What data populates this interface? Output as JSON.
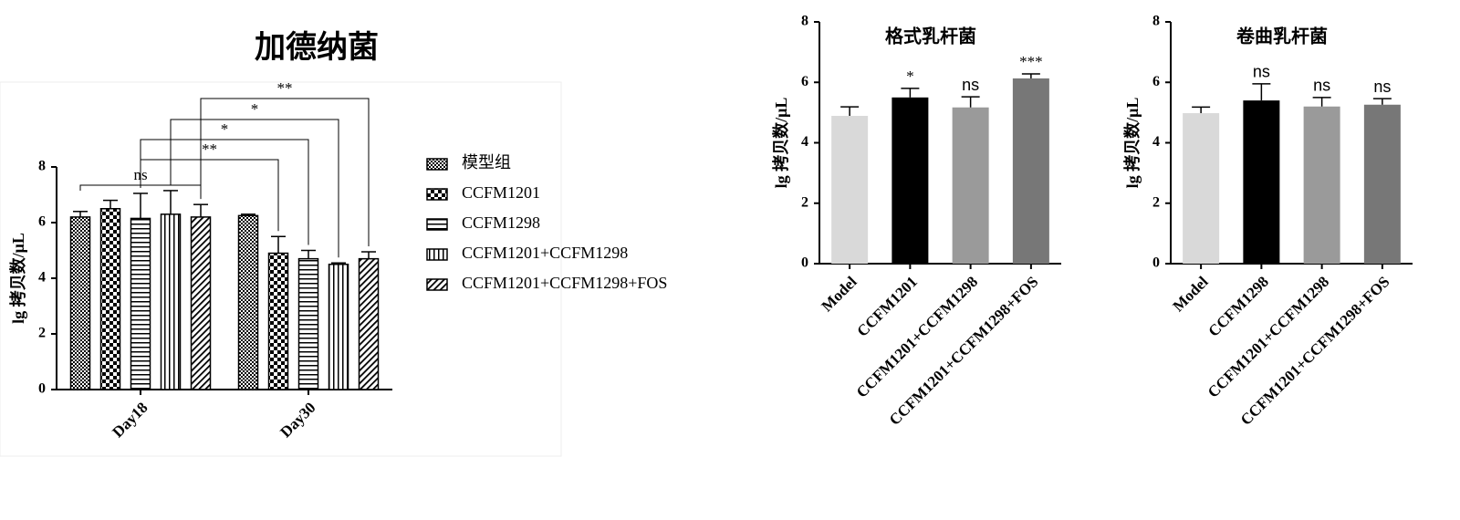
{
  "chart_data": [
    {
      "type": "grouped_bar",
      "title": "加德纳菌",
      "ylabel": "lg 拷贝数/μL",
      "categories": [
        "Day18",
        "Day30"
      ],
      "series": [
        {
          "name": "模型组",
          "pattern": "dots",
          "values": [
            6.2,
            6.25
          ],
          "errors": [
            0.2,
            0.05
          ]
        },
        {
          "name": "CCFM1201",
          "pattern": "checker",
          "values": [
            6.5,
            4.9
          ],
          "errors": [
            0.3,
            0.6
          ]
        },
        {
          "name": "CCFM1298",
          "pattern": "horizontal",
          "values": [
            6.15,
            4.7
          ],
          "errors": [
            0.9,
            0.3
          ]
        },
        {
          "name": "CCFM1201+CCFM1298",
          "pattern": "vertical",
          "values": [
            6.3,
            4.5
          ],
          "errors": [
            0.85,
            0.05
          ]
        },
        {
          "name": "CCFM1201+CCFM1298+FOS",
          "pattern": "diagonal",
          "values": [
            6.2,
            4.7
          ],
          "errors": [
            0.45,
            0.25
          ]
        }
      ],
      "significance": [
        "ns",
        "**",
        "*",
        "*",
        "**"
      ],
      "ylim": [
        0,
        8
      ],
      "yticks": [
        0,
        2,
        4,
        6,
        8
      ]
    },
    {
      "type": "bar",
      "title": "格式乳杆菌",
      "ylabel": "lg 拷贝数/μL",
      "categories": [
        "Model",
        "CCFM1201",
        "CCFM1201+CCFM1298",
        "CCFM1201+CCFM1298+FOS"
      ],
      "values": [
        4.89,
        5.5,
        5.17,
        6.13
      ],
      "errors": [
        0.3,
        0.3,
        0.35,
        0.15
      ],
      "colors": [
        "#d9d9d9",
        "#000000",
        "#9a9a9a",
        "#777777"
      ],
      "significance": [
        null,
        "*",
        "ns",
        "***"
      ],
      "ylim": [
        0,
        8
      ],
      "yticks": [
        0,
        2,
        4,
        6,
        8
      ]
    },
    {
      "type": "bar",
      "title": "卷曲乳杆菌",
      "ylabel": "lg 拷贝数/μL",
      "categories": [
        "Model",
        "CCFM1298",
        "CCFM1201+CCFM1298",
        "CCFM1201+CCFM1298+FOS"
      ],
      "values": [
        4.98,
        5.4,
        5.2,
        5.26
      ],
      "errors": [
        0.2,
        0.55,
        0.3,
        0.2
      ],
      "colors": [
        "#d9d9d9",
        "#000000",
        "#9a9a9a",
        "#777777"
      ],
      "significance": [
        null,
        "ns",
        "ns",
        "ns"
      ],
      "ylim": [
        0,
        8
      ],
      "yticks": [
        0,
        2,
        4,
        6,
        8
      ]
    }
  ]
}
